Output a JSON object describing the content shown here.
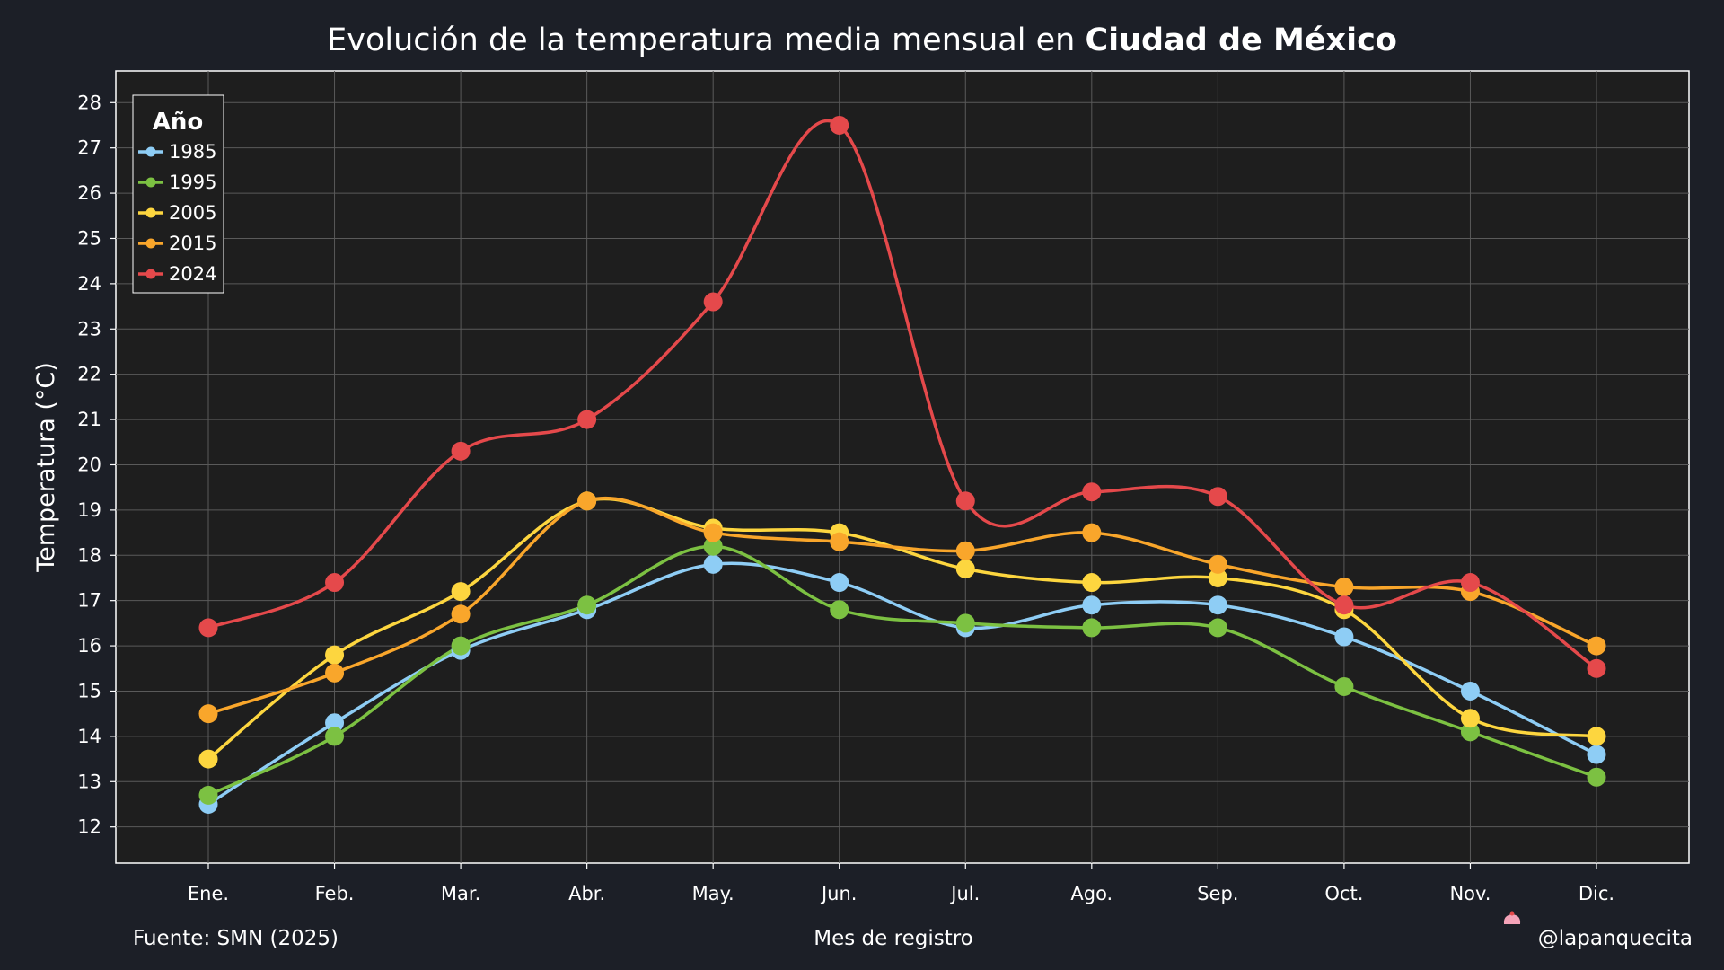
{
  "chart_data": {
    "type": "line",
    "title": "Evolución de la temperatura media mensual en ",
    "title_bold": "Ciudad de México",
    "xlabel": "Mes de registro",
    "ylabel": "Temperatura (°C)",
    "categories": [
      "Ene.",
      "Feb.",
      "Mar.",
      "Abr.",
      "May.",
      "Jun.",
      "Jul.",
      "Ago.",
      "Sep.",
      "Oct.",
      "Nov.",
      "Dic."
    ],
    "yticks": [
      12,
      13,
      14,
      15,
      16,
      17,
      18,
      19,
      20,
      21,
      22,
      23,
      24,
      25,
      26,
      27,
      28
    ],
    "ylim": [
      11.2,
      28.7
    ],
    "grid": true,
    "legend_title": "Año",
    "legend_position": "top-left",
    "series": [
      {
        "name": "1985",
        "color": "#8ecdf5",
        "values": [
          12.5,
          14.3,
          15.9,
          16.8,
          17.8,
          17.4,
          16.4,
          16.9,
          16.9,
          16.2,
          15.0,
          13.6
        ]
      },
      {
        "name": "1995",
        "color": "#7cc142",
        "values": [
          12.7,
          14.0,
          16.0,
          16.9,
          18.2,
          16.8,
          16.5,
          16.4,
          16.4,
          15.1,
          14.1,
          13.1
        ]
      },
      {
        "name": "2005",
        "color": "#fdd63f",
        "values": [
          13.5,
          15.8,
          17.2,
          19.2,
          18.6,
          18.5,
          17.7,
          17.4,
          17.5,
          16.8,
          14.4,
          14.0
        ]
      },
      {
        "name": "2015",
        "color": "#f9a62b",
        "values": [
          14.5,
          15.4,
          16.7,
          19.2,
          18.5,
          18.3,
          18.1,
          18.5,
          17.8,
          17.3,
          17.2,
          16.0
        ]
      },
      {
        "name": "2024",
        "color": "#e5494b",
        "values": [
          16.4,
          17.4,
          20.3,
          21.0,
          23.6,
          27.5,
          19.2,
          19.4,
          19.3,
          16.9,
          17.4,
          15.5
        ]
      }
    ]
  },
  "footer": {
    "source": "Fuente: SMN (2025)",
    "credit": "@lapanquecita",
    "credit_icon": "cupcake-icon"
  }
}
